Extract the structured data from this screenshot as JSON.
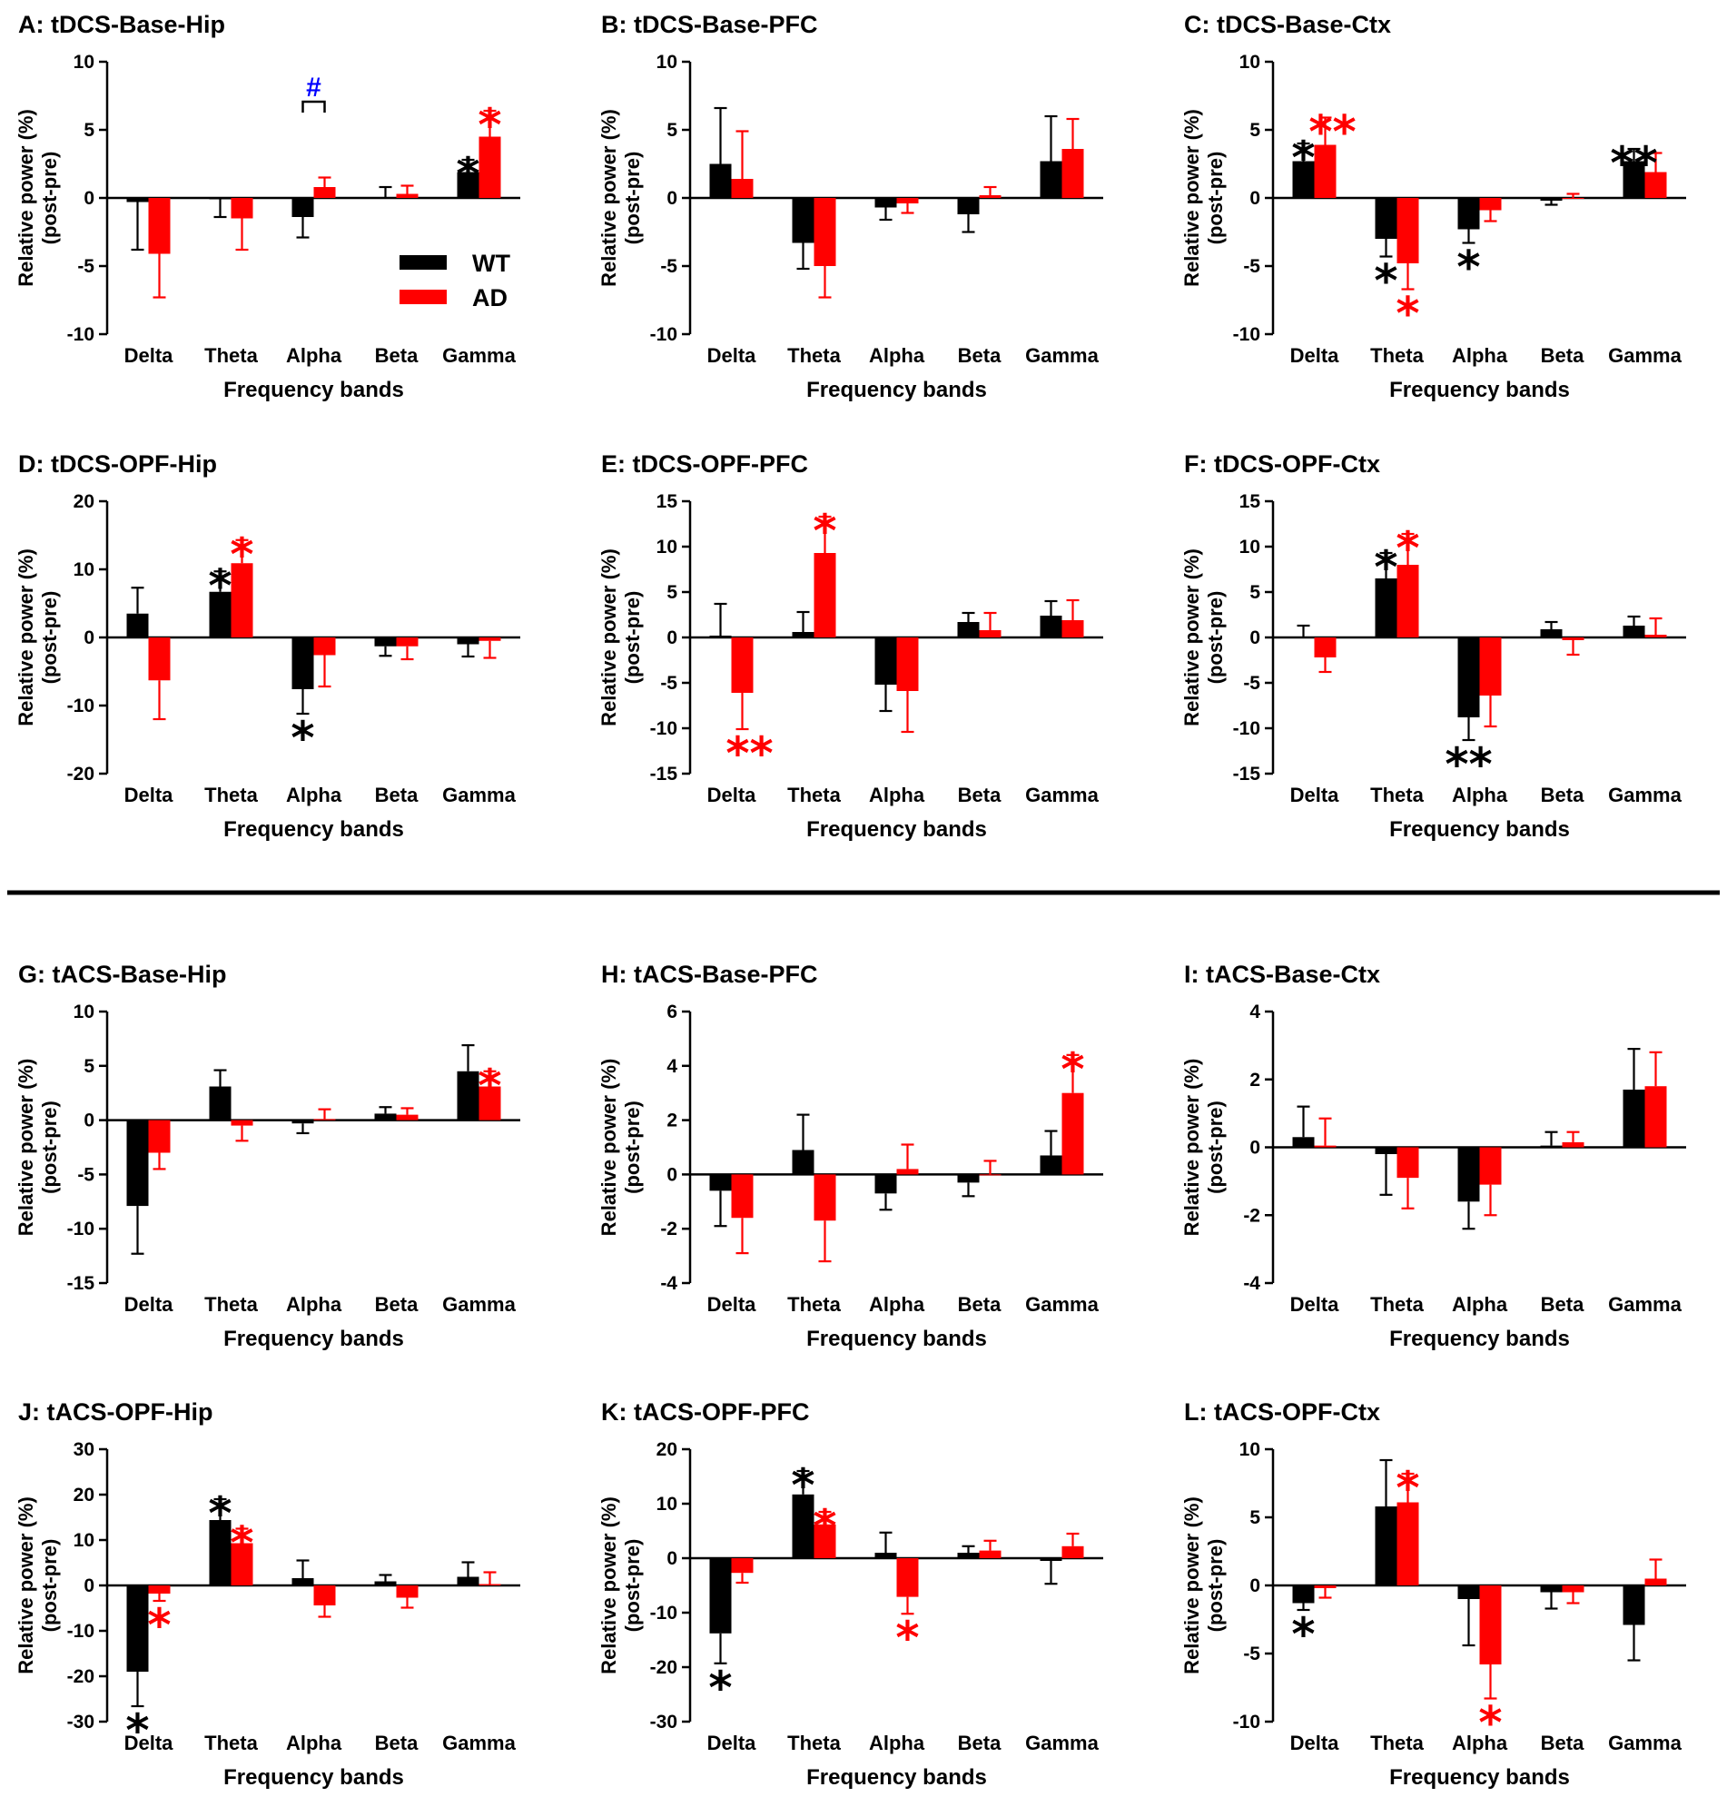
{
  "legend": {
    "wt_label": "WT",
    "ad_label": "AD"
  },
  "colors": {
    "WT": "#000000",
    "AD": "#ff0000",
    "hash": "#0000ff"
  },
  "chart_data": [
    {
      "panel": "A",
      "type": "bar",
      "title": "A: tDCS-Base-Hip",
      "categories": [
        "Delta",
        "Theta",
        "Alpha",
        "Beta",
        "Gamma"
      ],
      "ylim": [
        -10,
        10
      ],
      "yticks": [
        -10,
        -5,
        0,
        5,
        10
      ],
      "ylabel": "Relative power (%)",
      "ylabel2": "(post-pre)",
      "xlabel": "Frequency bands",
      "series": [
        {
          "name": "WT",
          "values": [
            -0.3,
            -0.1,
            -1.4,
            0.0,
            1.9
          ],
          "errors": [
            3.5,
            1.3,
            1.5,
            0.8,
            0.9
          ]
        },
        {
          "name": "AD",
          "values": [
            -4.1,
            -1.5,
            0.8,
            0.3,
            4.5
          ],
          "errors": [
            3.2,
            2.3,
            0.7,
            0.6,
            1.9
          ]
        }
      ],
      "stars": [
        {
          "band": 4,
          "group": "WT",
          "text": "*"
        },
        {
          "band": 4,
          "group": "AD",
          "text": "*"
        }
      ],
      "hash": {
        "band": 2,
        "text": "#"
      }
    },
    {
      "panel": "B",
      "type": "bar",
      "title": "B: tDCS-Base-PFC",
      "categories": [
        "Delta",
        "Theta",
        "Alpha",
        "Beta",
        "Gamma"
      ],
      "ylim": [
        -10,
        10
      ],
      "yticks": [
        -10,
        -5,
        0,
        5,
        10
      ],
      "ylabel": "Relative power (%)",
      "ylabel2": "(post-pre)",
      "xlabel": "Frequency bands",
      "series": [
        {
          "name": "WT",
          "values": [
            2.5,
            -3.3,
            -0.7,
            -1.2,
            2.7
          ],
          "errors": [
            4.1,
            1.9,
            0.9,
            1.3,
            3.3
          ]
        },
        {
          "name": "AD",
          "values": [
            1.4,
            -5.0,
            -0.4,
            0.2,
            3.6
          ],
          "errors": [
            3.5,
            2.3,
            0.7,
            0.6,
            2.2
          ]
        }
      ],
      "stars": []
    },
    {
      "panel": "C",
      "type": "bar",
      "title": "C: tDCS-Base-Ctx",
      "categories": [
        "Delta",
        "Theta",
        "Alpha",
        "Beta",
        "Gamma"
      ],
      "ylim": [
        -10,
        10
      ],
      "yticks": [
        -10,
        -5,
        0,
        5,
        10
      ],
      "ylabel": "Relative power (%)",
      "ylabel2": "(post-pre)",
      "xlabel": "Frequency bands",
      "series": [
        {
          "name": "WT",
          "values": [
            2.7,
            -3.0,
            -2.3,
            -0.2,
            2.7
          ],
          "errors": [
            1.3,
            1.3,
            1.0,
            0.3,
            0.9
          ]
        },
        {
          "name": "AD",
          "values": [
            3.9,
            -4.8,
            -0.9,
            0.0,
            1.9
          ],
          "errors": [
            2.0,
            1.9,
            0.8,
            0.3,
            1.4
          ]
        }
      ],
      "stars": [
        {
          "band": 0,
          "group": "WT",
          "text": "*"
        },
        {
          "band": 0,
          "group": "AD",
          "text": "**"
        },
        {
          "band": 1,
          "group": "WT",
          "text": "*"
        },
        {
          "band": 1,
          "group": "AD",
          "text": "*"
        },
        {
          "band": 2,
          "group": "WT",
          "text": "*"
        },
        {
          "band": 4,
          "group": "WT",
          "text": "**"
        }
      ]
    },
    {
      "panel": "D",
      "type": "bar",
      "title": "D: tDCS-OPF-Hip",
      "categories": [
        "Delta",
        "Theta",
        "Alpha",
        "Beta",
        "Gamma"
      ],
      "ylim": [
        -20,
        20
      ],
      "yticks": [
        -20,
        -10,
        0,
        10,
        20
      ],
      "ylabel": "Relative power (%)",
      "ylabel2": "(post-pre)",
      "xlabel": "Frequency bands",
      "series": [
        {
          "name": "WT",
          "values": [
            3.5,
            6.7,
            -7.6,
            -1.3,
            -1.0
          ],
          "errors": [
            3.8,
            3.0,
            3.6,
            1.4,
            1.8
          ]
        },
        {
          "name": "AD",
          "values": [
            -6.3,
            10.9,
            -2.6,
            -1.3,
            -0.5
          ],
          "errors": [
            5.7,
            3.4,
            4.6,
            1.9,
            2.5
          ]
        }
      ],
      "stars": [
        {
          "band": 1,
          "group": "WT",
          "text": "*"
        },
        {
          "band": 1,
          "group": "AD",
          "text": "*"
        },
        {
          "band": 2,
          "group": "WT",
          "text": "*"
        }
      ]
    },
    {
      "panel": "E",
      "type": "bar",
      "title": "E: tDCS-OPF-PFC",
      "categories": [
        "Delta",
        "Theta",
        "Alpha",
        "Beta",
        "Gamma"
      ],
      "ylim": [
        -15,
        15
      ],
      "yticks": [
        -15,
        -10,
        -5,
        0,
        5,
        10,
        15
      ],
      "ylabel": "Relative power (%)",
      "ylabel2": "(post-pre)",
      "xlabel": "Frequency bands",
      "series": [
        {
          "name": "WT",
          "values": [
            0.2,
            0.6,
            -5.2,
            1.7,
            2.4
          ],
          "errors": [
            3.5,
            2.2,
            2.9,
            1.0,
            1.6
          ]
        },
        {
          "name": "AD",
          "values": [
            -6.1,
            9.3,
            -5.9,
            0.8,
            1.9
          ],
          "errors": [
            4.0,
            4.0,
            4.5,
            1.9,
            2.2
          ]
        }
      ],
      "stars": [
        {
          "band": 0,
          "group": "AD",
          "text": "**"
        },
        {
          "band": 1,
          "group": "AD",
          "text": "*"
        }
      ]
    },
    {
      "panel": "F",
      "type": "bar",
      "title": "F: tDCS-OPF-Ctx",
      "categories": [
        "Delta",
        "Theta",
        "Alpha",
        "Beta",
        "Gamma"
      ],
      "ylim": [
        -15,
        15
      ],
      "yticks": [
        -15,
        -10,
        -5,
        0,
        5,
        10,
        15
      ],
      "ylabel": "Relative power (%)",
      "ylabel2": "(post-pre)",
      "xlabel": "Frequency bands",
      "series": [
        {
          "name": "WT",
          "values": [
            0.1,
            6.5,
            -8.8,
            0.9,
            1.3
          ],
          "errors": [
            1.2,
            2.8,
            2.5,
            0.8,
            1.0
          ]
        },
        {
          "name": "AD",
          "values": [
            -2.2,
            8.0,
            -6.4,
            -0.3,
            0.3
          ],
          "errors": [
            1.6,
            3.4,
            3.4,
            1.6,
            1.8
          ]
        }
      ],
      "stars": [
        {
          "band": 1,
          "group": "WT",
          "text": "*"
        },
        {
          "band": 1,
          "group": "AD",
          "text": "*"
        },
        {
          "band": 2,
          "group": "WT",
          "text": "**"
        }
      ]
    },
    {
      "panel": "G",
      "type": "bar",
      "title": "G: tACS-Base-Hip",
      "categories": [
        "Delta",
        "Theta",
        "Alpha",
        "Beta",
        "Gamma"
      ],
      "ylim": [
        -15,
        10
      ],
      "yticks": [
        -15,
        -10,
        -5,
        0,
        5,
        10
      ],
      "ylabel": "Relative power (%)",
      "ylabel2": "(post-pre)",
      "xlabel": "Frequency bands",
      "series": [
        {
          "name": "WT",
          "values": [
            -7.9,
            3.1,
            -0.3,
            0.6,
            4.5
          ],
          "errors": [
            4.4,
            1.5,
            0.9,
            0.6,
            2.4
          ]
        },
        {
          "name": "AD",
          "values": [
            -3.0,
            -0.5,
            0.1,
            0.5,
            3.1
          ],
          "errors": [
            1.5,
            1.4,
            0.9,
            0.6,
            1.4
          ]
        }
      ],
      "stars": [
        {
          "band": 4,
          "group": "AD",
          "text": "*"
        }
      ]
    },
    {
      "panel": "H",
      "type": "bar",
      "title": "H: tACS-Base-PFC",
      "categories": [
        "Delta",
        "Theta",
        "Alpha",
        "Beta",
        "Gamma"
      ],
      "ylim": [
        -4,
        6
      ],
      "yticks": [
        -4,
        -2,
        0,
        2,
        4,
        6
      ],
      "ylabel": "Relative power (%)",
      "ylabel2": "(post-pre)",
      "xlabel": "Frequency bands",
      "series": [
        {
          "name": "WT",
          "values": [
            -0.6,
            0.9,
            -0.7,
            -0.3,
            0.7
          ],
          "errors": [
            1.3,
            1.3,
            0.6,
            0.5,
            0.9
          ]
        },
        {
          "name": "AD",
          "values": [
            -1.6,
            -1.7,
            0.2,
            0.0,
            3.0
          ],
          "errors": [
            1.3,
            1.5,
            0.9,
            0.5,
            1.4
          ]
        }
      ],
      "stars": [
        {
          "band": 4,
          "group": "AD",
          "text": "*"
        }
      ]
    },
    {
      "panel": "I",
      "type": "bar",
      "title": "I: tACS-Base-Ctx",
      "categories": [
        "Delta",
        "Theta",
        "Alpha",
        "Beta",
        "Gamma"
      ],
      "ylim": [
        -4,
        4
      ],
      "yticks": [
        -4,
        -2,
        0,
        2,
        4
      ],
      "ylabel": "Relative power (%)",
      "ylabel2": "(post-pre)",
      "xlabel": "Frequency bands",
      "series": [
        {
          "name": "WT",
          "values": [
            0.3,
            -0.2,
            -1.6,
            0.05,
            1.7
          ],
          "errors": [
            0.9,
            1.2,
            0.8,
            0.4,
            1.2
          ]
        },
        {
          "name": "AD",
          "values": [
            0.05,
            -0.9,
            -1.1,
            0.15,
            1.8
          ],
          "errors": [
            0.8,
            0.9,
            0.9,
            0.3,
            1.0
          ]
        }
      ],
      "stars": []
    },
    {
      "panel": "J",
      "type": "bar",
      "title": "J: tACS-OPF-Hip",
      "categories": [
        "Delta",
        "Theta",
        "Alpha",
        "Beta",
        "Gamma"
      ],
      "ylim": [
        -30,
        30
      ],
      "yticks": [
        -30,
        -20,
        -10,
        0,
        10,
        20,
        30
      ],
      "ylabel": "Relative power (%)",
      "ylabel2": "(post-pre)",
      "xlabel": "Frequency bands",
      "series": [
        {
          "name": "WT",
          "values": [
            -19.0,
            14.4,
            1.6,
            0.9,
            1.9
          ],
          "errors": [
            7.6,
            4.6,
            3.9,
            1.4,
            3.2
          ]
        },
        {
          "name": "AD",
          "values": [
            -1.8,
            9.3,
            -4.4,
            -2.7,
            0.3
          ],
          "errors": [
            1.6,
            3.2,
            2.5,
            2.2,
            2.6
          ]
        }
      ],
      "stars": [
        {
          "band": 0,
          "group": "WT",
          "text": "*"
        },
        {
          "band": 0,
          "group": "AD",
          "text": "*"
        },
        {
          "band": 1,
          "group": "WT",
          "text": "*"
        },
        {
          "band": 1,
          "group": "AD",
          "text": "*"
        }
      ]
    },
    {
      "panel": "K",
      "type": "bar",
      "title": "K: tACS-OPF-PFC",
      "categories": [
        "Delta",
        "Theta",
        "Alpha",
        "Beta",
        "Gamma"
      ],
      "ylim": [
        -30,
        20
      ],
      "yticks": [
        -30,
        -20,
        -10,
        0,
        10,
        20
      ],
      "ylabel": "Relative power (%)",
      "ylabel2": "(post-pre)",
      "xlabel": "Frequency bands",
      "series": [
        {
          "name": "WT",
          "values": [
            -13.8,
            11.7,
            1.0,
            1.0,
            -0.5
          ],
          "errors": [
            5.5,
            4.3,
            3.7,
            1.2,
            4.2
          ]
        },
        {
          "name": "AD",
          "values": [
            -2.7,
            6.2,
            -7.1,
            1.4,
            2.2
          ],
          "errors": [
            1.8,
            2.3,
            3.1,
            1.8,
            2.3
          ]
        }
      ],
      "stars": [
        {
          "band": 0,
          "group": "WT",
          "text": "*"
        },
        {
          "band": 1,
          "group": "WT",
          "text": "*"
        },
        {
          "band": 1,
          "group": "AD",
          "text": "*"
        },
        {
          "band": 2,
          "group": "AD",
          "text": "*"
        }
      ]
    },
    {
      "panel": "L",
      "type": "bar",
      "title": "L: tACS-OPF-Ctx",
      "categories": [
        "Delta",
        "Theta",
        "Alpha",
        "Beta",
        "Gamma"
      ],
      "ylim": [
        -10,
        10
      ],
      "yticks": [
        -10,
        -5,
        0,
        5,
        10
      ],
      "ylabel": "Relative power (%)",
      "ylabel2": "(post-pre)",
      "xlabel": "Frequency bands",
      "series": [
        {
          "name": "WT",
          "values": [
            -1.3,
            5.8,
            -1.0,
            -0.5,
            -2.9
          ],
          "errors": [
            0.5,
            3.4,
            3.4,
            1.2,
            2.6
          ]
        },
        {
          "name": "AD",
          "values": [
            -0.2,
            6.1,
            -5.8,
            -0.5,
            0.5
          ],
          "errors": [
            0.7,
            2.1,
            2.5,
            0.8,
            1.4
          ]
        }
      ],
      "stars": [
        {
          "band": 0,
          "group": "WT",
          "text": "*"
        },
        {
          "band": 1,
          "group": "AD",
          "text": "*"
        },
        {
          "band": 2,
          "group": "AD",
          "text": "*"
        }
      ]
    }
  ]
}
